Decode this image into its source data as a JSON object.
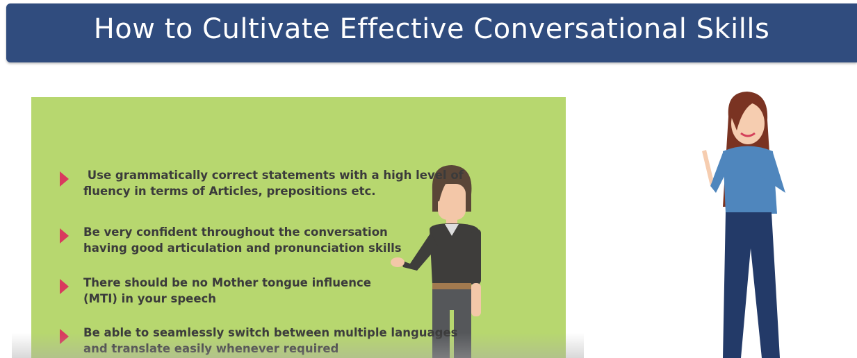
{
  "header": {
    "title": "How to Cultivate Effective Conversational Skills"
  },
  "bullets": [
    {
      "lines": [
        " Use grammatically correct statements with a high level of",
        "fluency in terms of Articles, prepositions etc."
      ]
    },
    {
      "lines": [
        "Be very confident throughout the conversation",
        "having good articulation and pronunciation skills"
      ]
    },
    {
      "lines": [
        "There should be no Mother tongue influence",
        "(MTI) in your speech"
      ]
    },
    {
      "lines": [
        "Be able to seamlessly switch between multiple languages",
        "and translate easily whenever required"
      ]
    }
  ]
}
